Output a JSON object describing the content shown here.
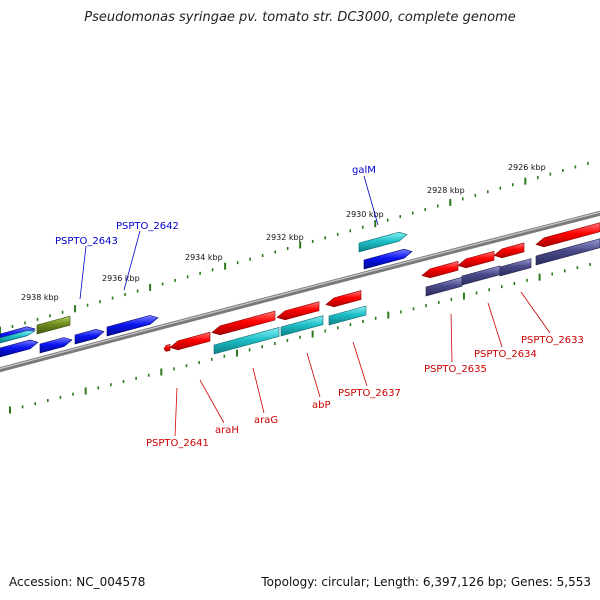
{
  "title": "Pseudomonas syringae pv. tomato str. DC3000, complete genome",
  "footer": {
    "accession": "Accession: NC_004578",
    "summary": "Topology: circular; Length: 6,397,126 bp; Genes: 5,553"
  },
  "colors": {
    "red": "#ff0000",
    "cyan": "#1fc0c8",
    "blue": "#0a14f0",
    "navy": "#4a4a8a",
    "olive": "#6f8c1f",
    "tick": "#2a7a1a",
    "label_red": "#cc0000",
    "label_blue": "#0000cc"
  },
  "kbp_labels": [
    "2926 kbp",
    "2928 kbp",
    "2930 kbp",
    "2932 kbp",
    "2934 kbp",
    "2936 kbp",
    "2938 kbp"
  ],
  "gene_labels": [
    {
      "text": "galM",
      "color": "blue"
    },
    {
      "text": "PSPTO_2642",
      "color": "blue"
    },
    {
      "text": "PSPTO_2643",
      "color": "blue"
    },
    {
      "text": "PSPTO_2633",
      "color": "red"
    },
    {
      "text": "PSPTO_2634",
      "color": "red"
    },
    {
      "text": "PSPTO_2635",
      "color": "red"
    },
    {
      "text": "PSPTO_2637",
      "color": "red"
    },
    {
      "text": "abP",
      "color": "red"
    },
    {
      "text": "araG",
      "color": "red"
    },
    {
      "text": "araH",
      "color": "red"
    },
    {
      "text": "PSPTO_2641",
      "color": "red"
    }
  ]
}
